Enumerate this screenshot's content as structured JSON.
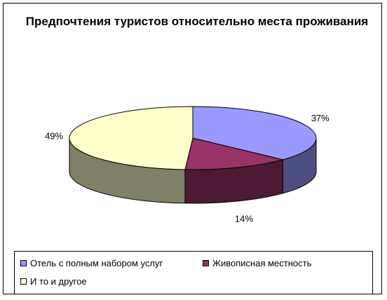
{
  "chart_data": {
    "type": "pie",
    "title": "Предпочтения туристов относительно места проживания",
    "categories": [
      "Отель с полным набором услуг",
      "Живописная местность",
      "И то и другое"
    ],
    "values": [
      37,
      14,
      49
    ],
    "data_labels": [
      "37%",
      "14%",
      "49%"
    ],
    "colors": [
      "#9999FF",
      "#993366",
      "#FFFFCC"
    ],
    "side_colors": [
      "#4D4D80",
      "#4D1A33",
      "#808066"
    ],
    "legend_position": "bottom",
    "style": "3d"
  }
}
